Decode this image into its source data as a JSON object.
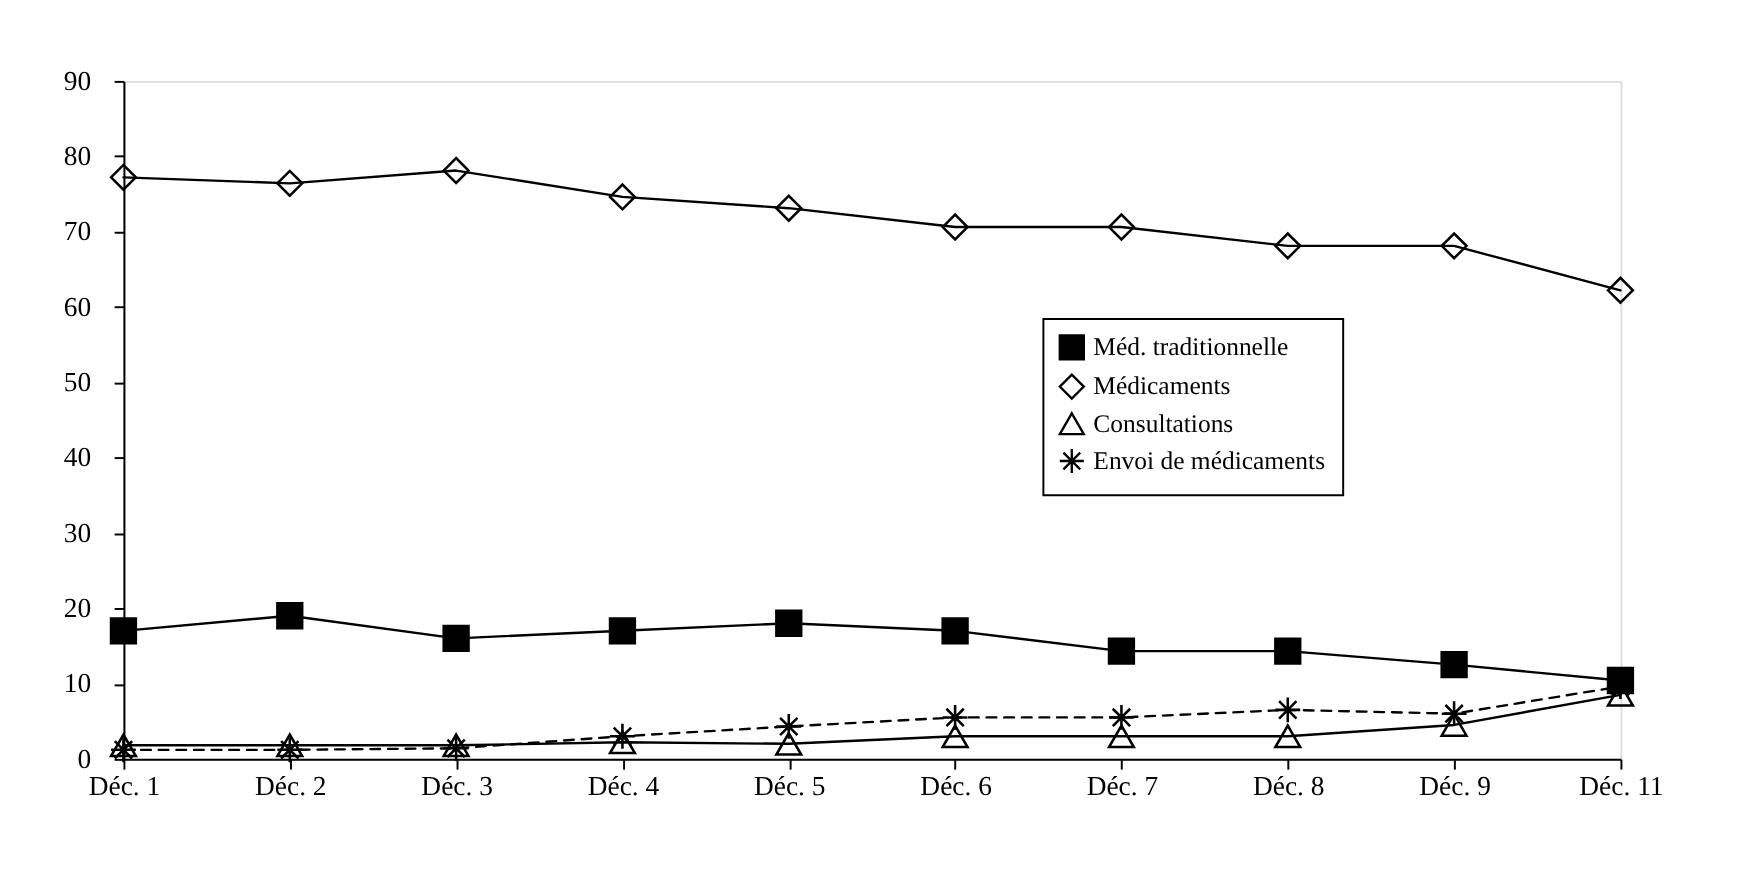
{
  "chart_data": {
    "type": "line",
    "categories": [
      "Déc. 1",
      "Déc. 2",
      "Déc. 3",
      "Déc. 4",
      "Déc. 5",
      "Déc. 6",
      "Déc. 7",
      "Déc. 8",
      "Déc. 9",
      "Déc. 11"
    ],
    "series": [
      {
        "name": "Méd. traditionnelle",
        "color": "#000000",
        "marker": "square",
        "line_style": "solid",
        "values": [
          17,
          19,
          16,
          17,
          18,
          17,
          14.3,
          14.3,
          12.5,
          10.4
        ]
      },
      {
        "name": "Médicaments",
        "color": "#000000",
        "marker": "diamond",
        "line_style": "solid",
        "values": [
          77.2,
          76.4,
          78.1,
          74.6,
          73.1,
          70.6,
          70.6,
          68.1,
          68.1,
          62.2
        ]
      },
      {
        "name": "Consultations",
        "color": "#000000",
        "marker": "triangle",
        "line_style": "solid",
        "values": [
          1.8,
          1.8,
          1.8,
          2.2,
          2,
          3,
          3,
          3,
          4.5,
          8.5
        ]
      },
      {
        "name": "Envoi de médicaments",
        "color": "#000000",
        "marker": "cross",
        "line_style": "dashed",
        "values": [
          1.2,
          1.2,
          1.4,
          3,
          4.3,
          5.5,
          5.5,
          6.5,
          6,
          9.6
        ]
      }
    ],
    "ylim": [
      0,
      90
    ],
    "yticks": [
      0,
      10,
      20,
      30,
      40,
      50,
      60,
      70,
      80,
      90
    ],
    "grid": false,
    "legend": "right"
  }
}
